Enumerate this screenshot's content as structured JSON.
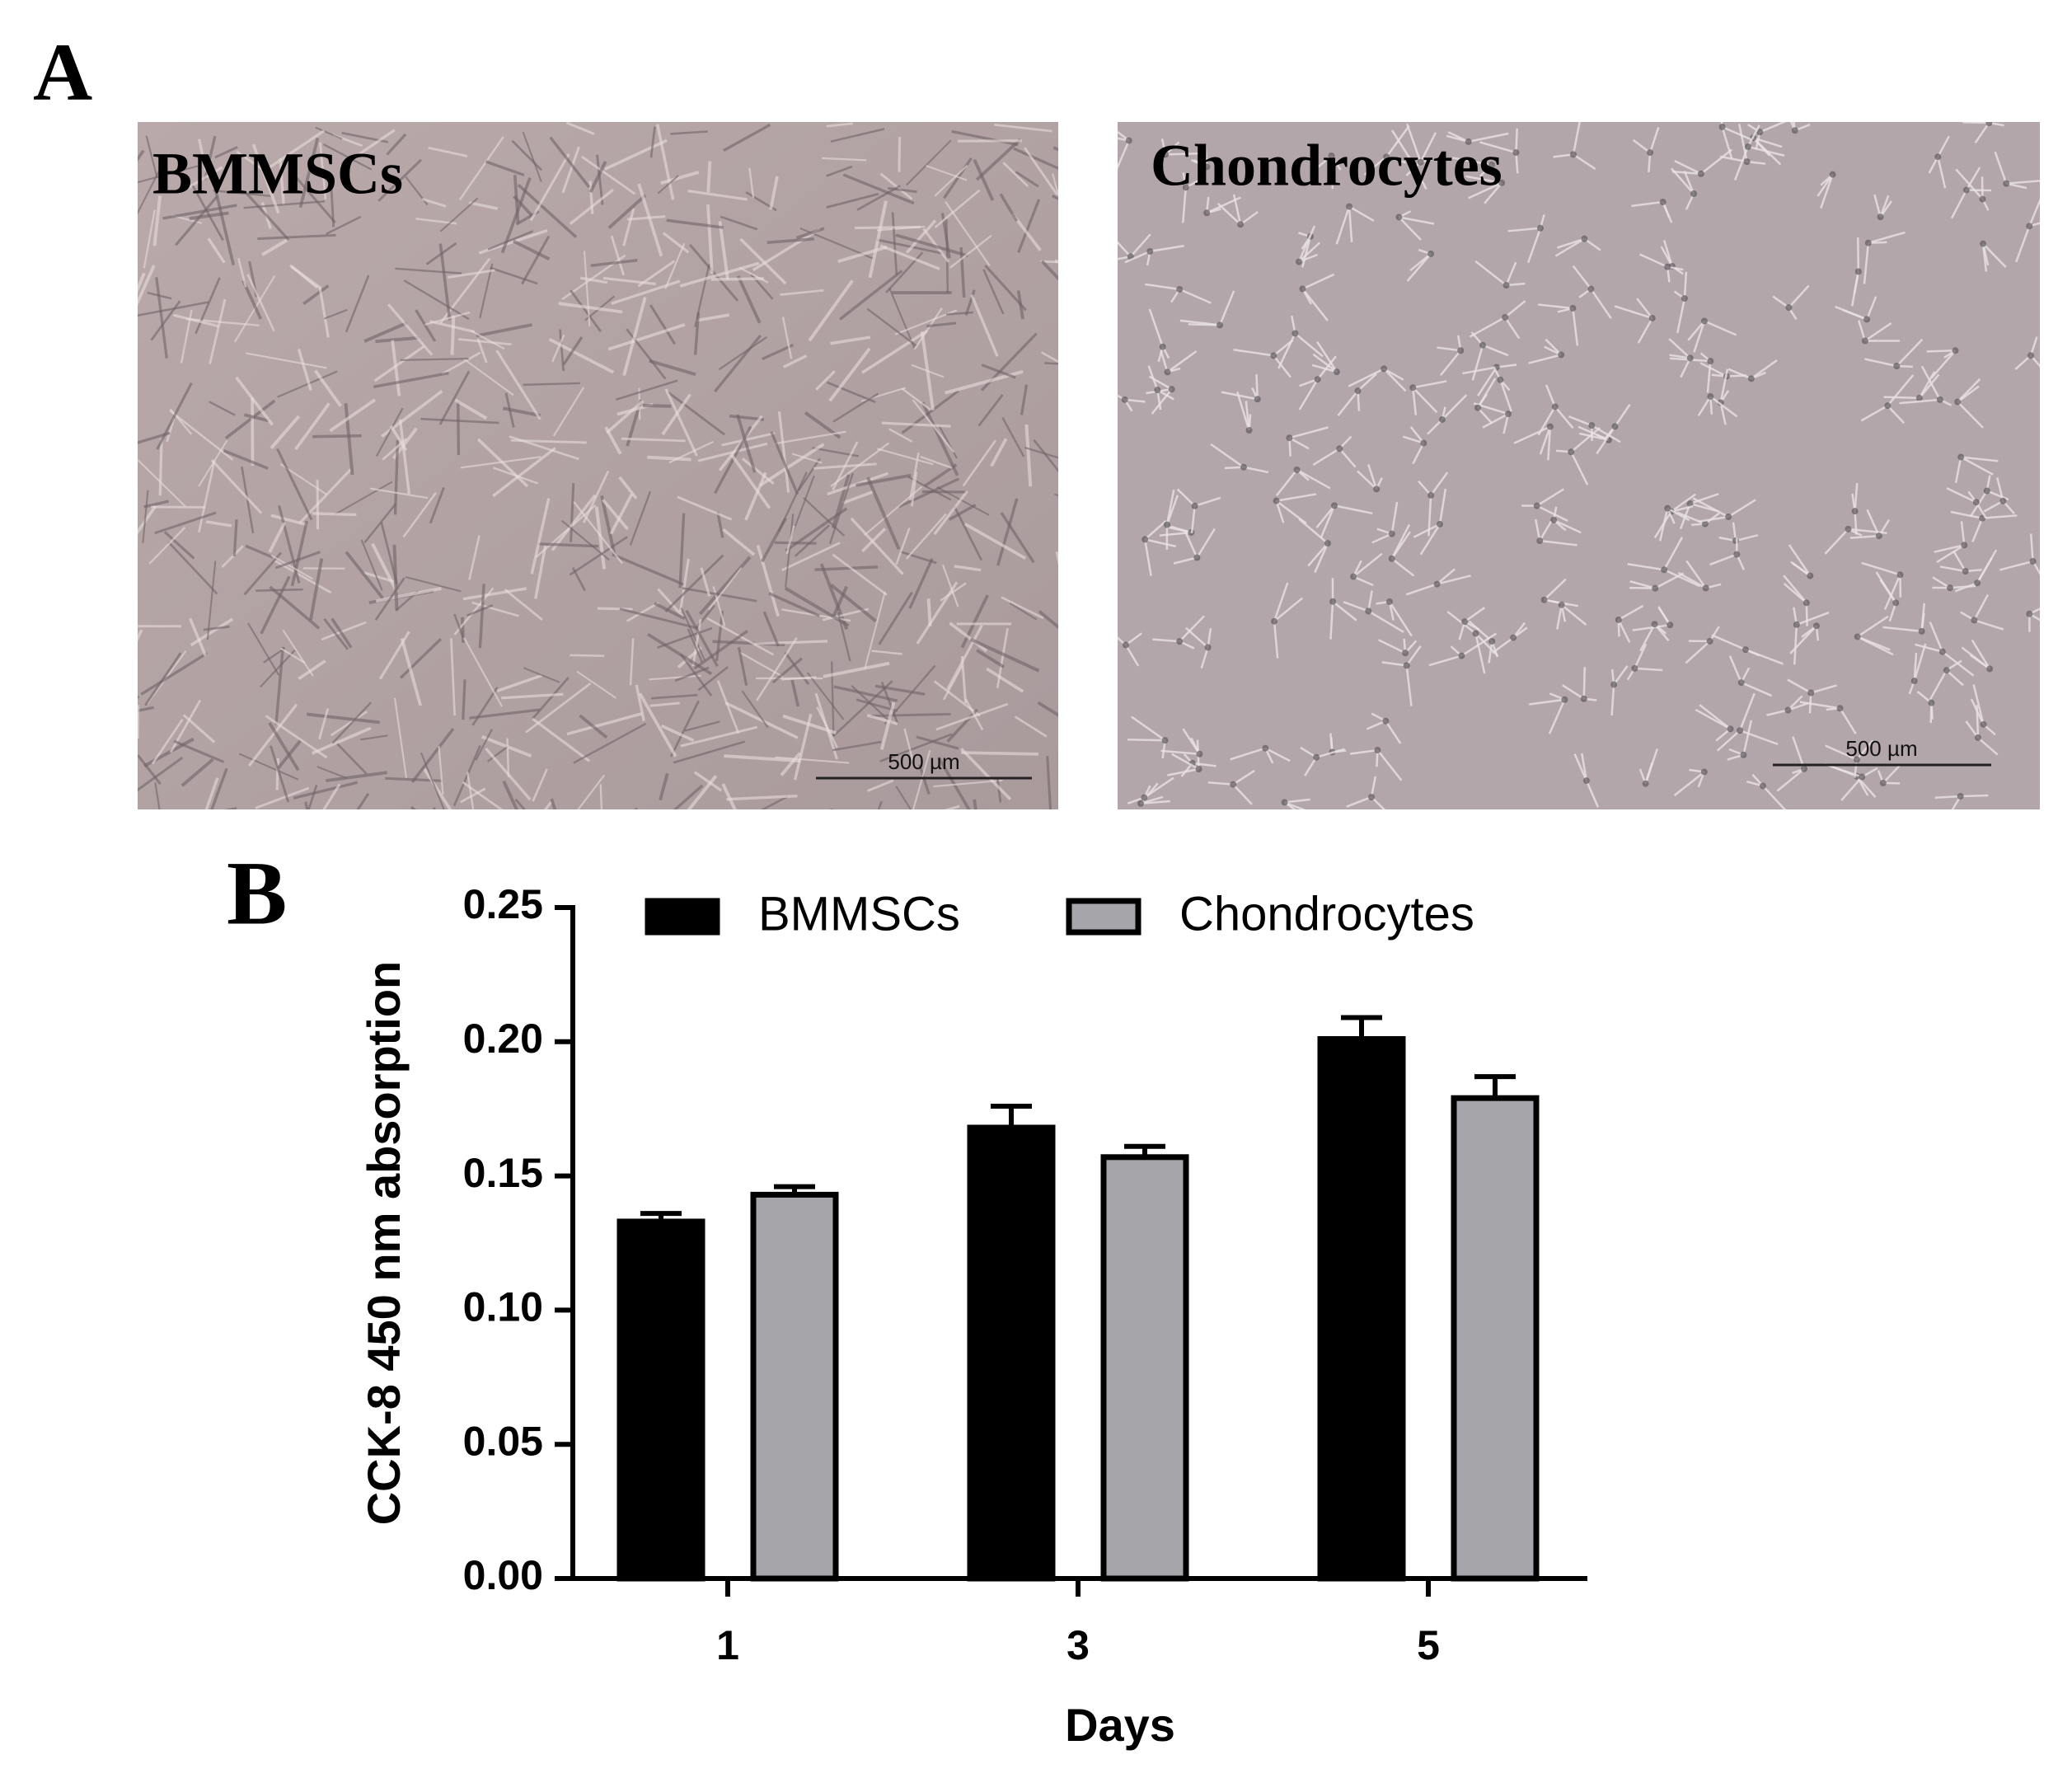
{
  "panel_a": {
    "label": "A",
    "images": [
      {
        "label": "BMMSCs",
        "scale_bar": "500 µm"
      },
      {
        "label": "Chondrocytes",
        "scale_bar": "500 µm"
      }
    ]
  },
  "chart_data": {
    "type": "bar",
    "panel_label": "B",
    "xlabel": "Days",
    "ylabel": "CCK-8 450 nm absorption",
    "categories": [
      "1",
      "3",
      "5"
    ],
    "series": [
      {
        "name": "BMMSCs",
        "color": "#000000",
        "values": [
          0.133,
          0.168,
          0.201
        ],
        "errors": [
          0.003,
          0.008,
          0.008
        ]
      },
      {
        "name": "Chondrocytes",
        "color": "#a6a5aa",
        "values": [
          0.143,
          0.157,
          0.179
        ],
        "errors": [
          0.003,
          0.004,
          0.008
        ]
      }
    ],
    "ylim": [
      0,
      0.25
    ],
    "yticks": [
      {
        "value": 0,
        "label": "0.00"
      },
      {
        "value": 0.05,
        "label": "0.05"
      },
      {
        "value": 0.1,
        "label": "0.10"
      },
      {
        "value": 0.15,
        "label": "0.15"
      },
      {
        "value": 0.2,
        "label": "0.20"
      },
      {
        "value": 0.25,
        "label": "0.25"
      }
    ],
    "grid": false,
    "legend": "top"
  }
}
